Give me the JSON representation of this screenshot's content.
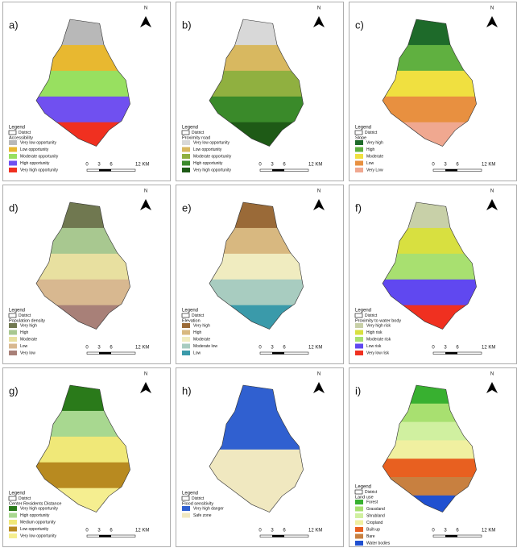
{
  "panels": [
    {
      "label": "a)",
      "north": "N",
      "legend_title": "Legend",
      "district": "District",
      "layer": "Accessibility",
      "items": [
        {
          "label": "Very low opportunity",
          "color": "#b8b8b8"
        },
        {
          "label": "Low opportunity",
          "color": "#e8b830"
        },
        {
          "label": "Moderate opportunity",
          "color": "#98e060"
        },
        {
          "label": "High opportunity",
          "color": "#7050f0"
        },
        {
          "label": "Very high opportunity",
          "color": "#f03020"
        }
      ],
      "scale": [
        "0",
        "3",
        "6",
        "12 KM"
      ]
    },
    {
      "label": "b)",
      "north": "N",
      "legend_title": "Legend",
      "district": "District",
      "layer": "Proximity road",
      "items": [
        {
          "label": "Very low opportunity",
          "color": "#d8d8d8"
        },
        {
          "label": "Low opportunity",
          "color": "#d8b860"
        },
        {
          "label": "Moderate opportunity",
          "color": "#90b040"
        },
        {
          "label": "High opportunity",
          "color": "#3a8a2a"
        },
        {
          "label": "Very high opportunity",
          "color": "#1e5a16"
        }
      ],
      "scale": [
        "0",
        "3",
        "6",
        "12 KM"
      ]
    },
    {
      "label": "c)",
      "north": "N",
      "legend_title": "Legend",
      "district": "District",
      "layer": "Slope",
      "items": [
        {
          "label": "Very high",
          "color": "#1e6a2a"
        },
        {
          "label": "High",
          "color": "#60b040"
        },
        {
          "label": "Moderate",
          "color": "#f0e040"
        },
        {
          "label": "Low",
          "color": "#e89040"
        },
        {
          "label": "Very Low",
          "color": "#f0a890"
        }
      ],
      "scale": [
        "0",
        "3",
        "6",
        "12 KM"
      ]
    },
    {
      "label": "d)",
      "north": "N",
      "legend_title": "Legend",
      "district": "District",
      "layer": "Population density",
      "items": [
        {
          "label": "Very high",
          "color": "#707850"
        },
        {
          "label": "High",
          "color": "#a8c890"
        },
        {
          "label": "Moderate",
          "color": "#e8e0a0"
        },
        {
          "label": "Low",
          "color": "#d8b890"
        },
        {
          "label": "Very low",
          "color": "#a88078"
        }
      ],
      "scale": [
        "0",
        "3",
        "6",
        "12 KM"
      ]
    },
    {
      "label": "e)",
      "north": "N",
      "legend_title": "Legend",
      "district": "District",
      "layer": "Elevation",
      "items": [
        {
          "label": "Very high",
          "color": "#9a6a38"
        },
        {
          "label": "High",
          "color": "#d8b880"
        },
        {
          "label": "Moderate",
          "color": "#f0ecc0"
        },
        {
          "label": "Moderate low",
          "color": "#a8ccc0"
        },
        {
          "label": "Low",
          "color": "#3a9aaa"
        }
      ],
      "scale": [
        "0",
        "3",
        "6",
        "12 KM"
      ]
    },
    {
      "label": "f)",
      "north": "N",
      "legend_title": "Legend",
      "district": "District",
      "layer": "Proximity to water body",
      "items": [
        {
          "label": "Very high risk",
          "color": "#c8d0a8"
        },
        {
          "label": "High risk",
          "color": "#d8e040"
        },
        {
          "label": "Moderate risk",
          "color": "#a8e070"
        },
        {
          "label": "Low risk",
          "color": "#6048f0"
        },
        {
          "label": "Very low risk",
          "color": "#f03020"
        }
      ],
      "scale": [
        "0",
        "3",
        "6",
        "12 KM"
      ]
    },
    {
      "label": "g)",
      "north": "N",
      "legend_title": "Legend",
      "district": "District",
      "layer": "Center Residents Distance",
      "items": [
        {
          "label": "Very high opportunity",
          "color": "#2a7a1a"
        },
        {
          "label": "High opportunity",
          "color": "#a8d890"
        },
        {
          "label": "Medium opportunity",
          "color": "#f0e878"
        },
        {
          "label": "Low opportunity",
          "color": "#b88a20"
        },
        {
          "label": "Very low opportunity",
          "color": "#f5ee90"
        }
      ],
      "scale": [
        "0",
        "3",
        "6",
        "12 KM"
      ]
    },
    {
      "label": "h)",
      "north": "N",
      "legend_title": "Legend",
      "district": "District",
      "layer": "Flood sensitivity",
      "items": [
        {
          "label": "Very high danger",
          "color": "#3060d0"
        },
        {
          "label": "Safe zone",
          "color": "#f0e8c0"
        }
      ],
      "scale": [
        "0",
        "3",
        "6",
        "12 KM"
      ]
    },
    {
      "label": "i)",
      "north": "N",
      "legend_title": "Legend",
      "district": "District",
      "layer": "Land use",
      "items": [
        {
          "label": "Forest",
          "color": "#38b030"
        },
        {
          "label": "Grassland",
          "color": "#a8e070"
        },
        {
          "label": "Shrubland",
          "color": "#d0f0a0"
        },
        {
          "label": "Cropland",
          "color": "#f0f0a0"
        },
        {
          "label": "Built-up",
          "color": "#e86020"
        },
        {
          "label": "Bare",
          "color": "#c88040"
        },
        {
          "label": "Water bodies",
          "color": "#2050d0"
        }
      ],
      "scale": [
        "0",
        "3",
        "6",
        "12 KM"
      ]
    }
  ]
}
